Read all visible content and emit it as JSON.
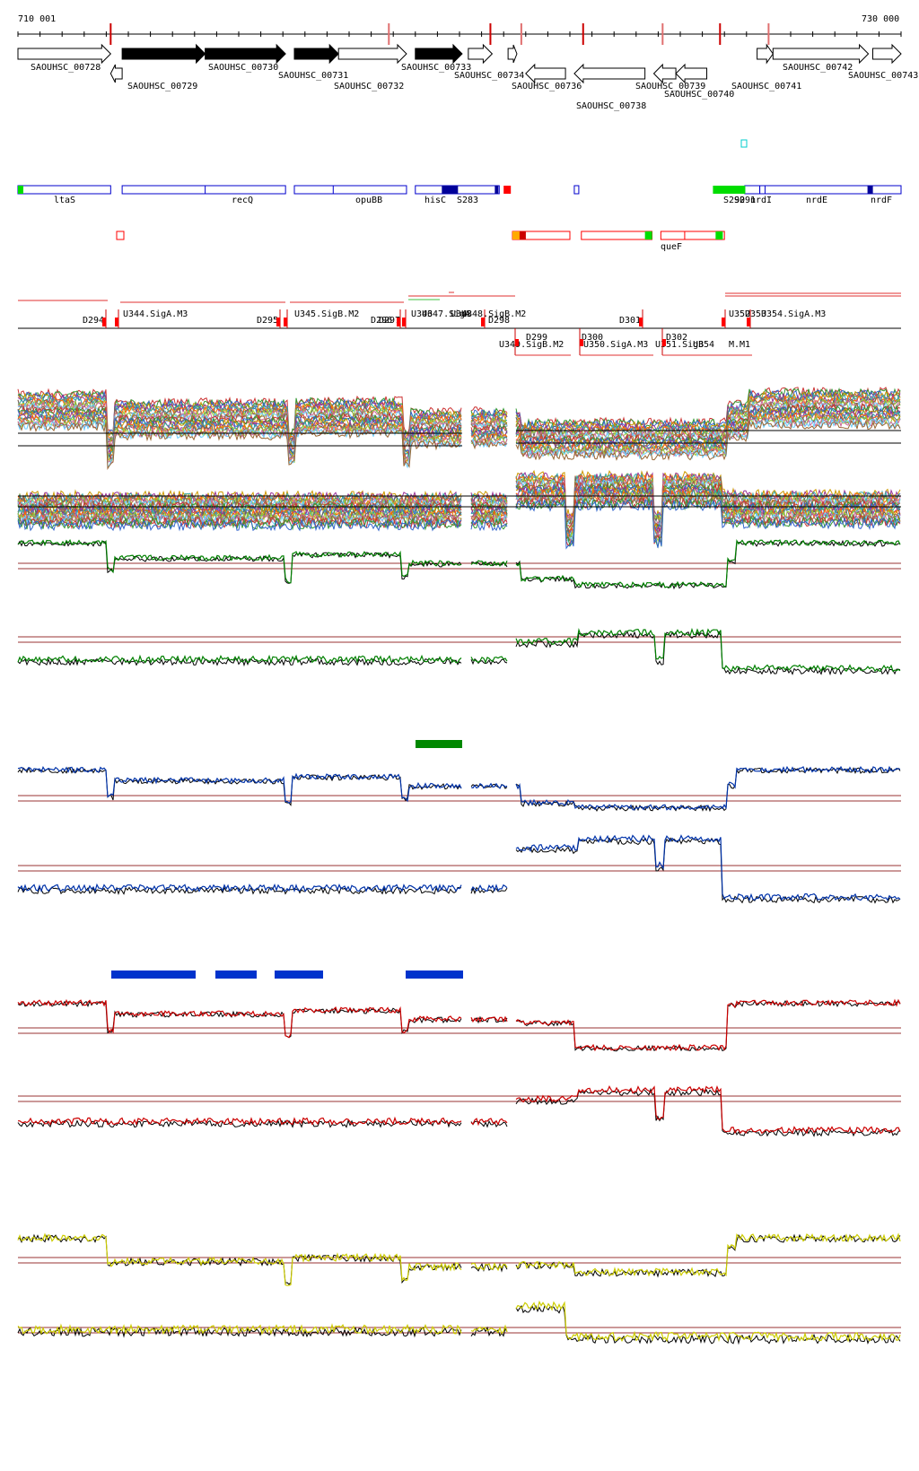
{
  "coords": {
    "start": "710 001",
    "end": "730 000"
  },
  "genes_top": [
    {
      "name": "SAOUHSC_00728",
      "from": 0.0,
      "to": 0.105,
      "strand": "+",
      "fill": false
    },
    {
      "name": "SAOUHSC_00730",
      "from": 0.118,
      "to": 0.212,
      "strand": "+",
      "fill": true
    },
    {
      "name": "SAOUHSC_00730",
      "from": 0.212,
      "to": 0.303,
      "strand": "+",
      "fill": true
    },
    {
      "name": "SAOUHSC_00731",
      "from": 0.313,
      "to": 0.363,
      "strand": "+",
      "fill": true
    },
    {
      "name": "SAOUHSC_00732",
      "from": 0.363,
      "to": 0.44,
      "strand": "+",
      "fill": false
    },
    {
      "name": "SAOUHSC_00733",
      "from": 0.45,
      "to": 0.503,
      "strand": "+",
      "fill": true
    },
    {
      "name": "SAOUHSC_00734",
      "from": 0.51,
      "to": 0.537,
      "strand": "+",
      "fill": false
    },
    {
      "name": "",
      "from": 0.555,
      "to": 0.565,
      "strand": "+",
      "fill": false
    },
    {
      "name": "SAOUHSC_00741",
      "from": 0.837,
      "to": 0.855,
      "strand": "+",
      "fill": false
    },
    {
      "name": "SAOUHSC_00742",
      "from": 0.855,
      "to": 0.963,
      "strand": "+",
      "fill": false
    },
    {
      "name": "SAOUHSC_00743",
      "from": 0.968,
      "to": 1.0,
      "strand": "+",
      "fill": false
    }
  ],
  "genes_bottom": [
    {
      "name": "SAOUHSC_00729",
      "from": 0.105,
      "to": 0.118
    },
    {
      "name": "SAOUHSC_00736",
      "from": 0.575,
      "to": 0.62
    },
    {
      "name": "SAOUHSC_00738",
      "from": 0.63,
      "to": 0.71
    },
    {
      "name": "SAOUHSC_00739",
      "from": 0.72,
      "to": 0.745
    },
    {
      "name": "SAOUHSC_00740",
      "from": 0.745,
      "to": 0.78
    }
  ],
  "gene_labels_top": [
    "SAOUHSC_00728",
    "SAOUHSC_00730",
    "SAOUHSC_00731",
    "SAOUHSC_00732",
    "SAOUHSC_00733",
    "SAOUHSC_00734",
    "SAOUHSC_00736",
    "SAOUHSC_00739",
    "SAOUHSC_00740",
    "SAOUHSC_00741",
    "SAOUHSC_00742",
    "SAOUHSC_00743",
    "SAOUHSC_00729",
    "SAOUHSC_00738"
  ],
  "features_blue": [
    "ltaS",
    "recQ",
    "opuBB",
    "hisC",
    "S283",
    "S290",
    "S291",
    "nrdI",
    "nrdE",
    "nrdF"
  ],
  "features_red": [
    "queF"
  ],
  "promoters_up": [
    "D294",
    "U344.SigA.M3",
    "D295",
    "U345.SigB.M2",
    "D296",
    "D297",
    "U346",
    "U347.SigA",
    "U348",
    "U348.SigB.M2",
    "D298",
    "D301",
    "U352",
    "U353",
    "U354.SigA.M3"
  ],
  "promoters_down": [
    "D299",
    "U349.SigB.M2",
    "D300",
    "U350.SigA.M3",
    "D302",
    "U351.SigB",
    "U354",
    "M.M1"
  ],
  "colors": {
    "gene_outline": "#000000",
    "feature_blue": "#0000cc",
    "feature_red": "#ff0000",
    "green_trace": "#008000",
    "blue_trace": "#0033aa",
    "red_trace": "#cc0000",
    "yellow_trace": "#cccc00",
    "threshold": "#993333",
    "cyan": "#00cccc",
    "green_box": "#00dd00"
  }
}
